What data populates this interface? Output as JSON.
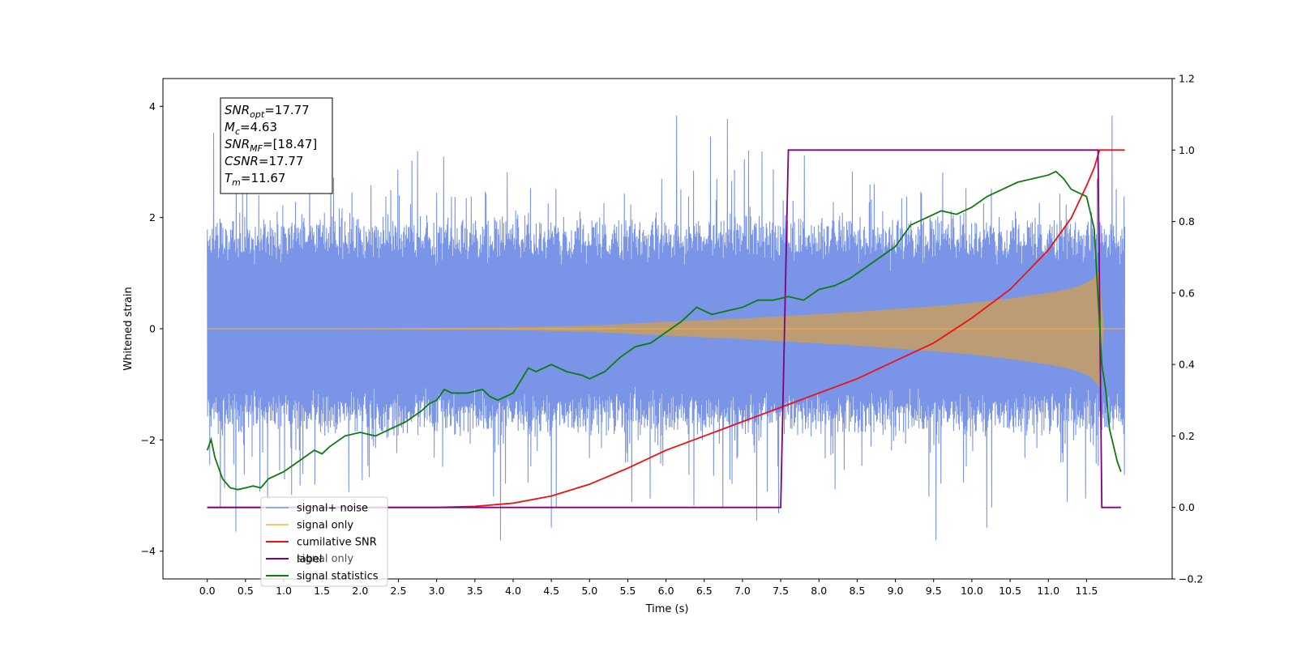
{
  "chart_data": {
    "type": "line",
    "xlabel": "Time (s)",
    "ylabel": "Whitened strain",
    "xlim": [
      -0.58,
      12.62
    ],
    "ylim_left": [
      -4.5,
      4.5
    ],
    "ylim_right": [
      -0.2,
      1.2
    ],
    "x_ticks": [
      0.0,
      0.5,
      1.0,
      1.5,
      2.0,
      2.5,
      3.0,
      3.5,
      4.0,
      4.5,
      5.0,
      5.5,
      6.0,
      6.5,
      7.0,
      7.5,
      8.0,
      8.5,
      9.0,
      9.5,
      10.0,
      10.5,
      11.0,
      11.5
    ],
    "y_ticks_left": [
      -4,
      -2,
      0,
      2,
      4
    ],
    "y_ticks_right": [
      -0.2,
      0.0,
      0.2,
      0.4,
      0.6,
      0.8,
      1.0,
      1.2
    ],
    "legend": {
      "placement": "lower-left",
      "entries": [
        "signal+ noise",
        "signal only",
        "cumilative SNR",
        "label",
        "signal statistics"
      ],
      "overlapped_entry": "signal only"
    },
    "annotation": {
      "lines": [
        {
          "base": "SNR",
          "sub": "opt",
          "value": "=17.77"
        },
        {
          "base": "M",
          "sub": "c",
          "value": "=4.63"
        },
        {
          "base": "SNR",
          "sub": "MF",
          "value": "=[18.47]"
        },
        {
          "base": "CSNR",
          "sub": "",
          "value": "=17.77"
        },
        {
          "base": "T",
          "sub": "m",
          "value": "=11.67"
        }
      ]
    },
    "colors": {
      "noise": "#7a95e8",
      "signal": "#f5b041",
      "signal_overlap": "#bc9c75",
      "csnr": "#ee1111",
      "label": "#800080",
      "stat": "#0f7a0f"
    },
    "series": [
      {
        "name": "signal+ noise",
        "axis": "left",
        "x_range": [
          0.0,
          12.0
        ],
        "core_band": [
          -1.6,
          1.7
        ],
        "peak_max": 4.1,
        "peak_min": -3.9
      },
      {
        "name": "signal only",
        "axis": "left",
        "envelope_x": [
          0.0,
          1.0,
          2.0,
          3.0,
          4.0,
          5.0,
          6.0,
          6.5,
          7.0,
          7.5,
          8.0,
          8.5,
          9.0,
          9.5,
          10.0,
          10.5,
          11.0,
          11.3,
          11.5,
          11.6,
          11.67,
          11.72,
          12.0
        ],
        "envelope_y": [
          0.0,
          0.0,
          0.005,
          0.01,
          0.02,
          0.05,
          0.12,
          0.15,
          0.18,
          0.22,
          0.26,
          0.3,
          0.35,
          0.4,
          0.46,
          0.54,
          0.64,
          0.72,
          0.82,
          0.92,
          1.05,
          0.0,
          0.0
        ]
      },
      {
        "name": "cumilative SNR",
        "axis": "right",
        "x": [
          0.0,
          2.0,
          3.0,
          3.5,
          4.0,
          4.5,
          5.0,
          5.5,
          6.0,
          6.5,
          7.0,
          7.5,
          8.0,
          8.5,
          9.0,
          9.5,
          10.0,
          10.5,
          11.0,
          11.3,
          11.5,
          11.6,
          11.67,
          12.0
        ],
        "y": [
          0.0,
          0.0,
          0.0,
          0.003,
          0.012,
          0.032,
          0.065,
          0.11,
          0.16,
          0.2,
          0.24,
          0.28,
          0.32,
          0.36,
          0.41,
          0.46,
          0.53,
          0.61,
          0.72,
          0.81,
          0.9,
          0.95,
          1.0,
          1.0
        ]
      },
      {
        "name": "label",
        "axis": "right",
        "x": [
          0.0,
          7.5,
          7.6,
          11.65,
          11.7,
          11.95
        ],
        "y": [
          0.0,
          0.0,
          1.0,
          1.0,
          0.0,
          0.0
        ]
      },
      {
        "name": "signal statistics",
        "axis": "right",
        "x": [
          0.0,
          0.05,
          0.1,
          0.2,
          0.3,
          0.4,
          0.5,
          0.6,
          0.7,
          0.8,
          1.0,
          1.2,
          1.4,
          1.5,
          1.6,
          1.8,
          2.0,
          2.2,
          2.4,
          2.6,
          2.8,
          2.9,
          3.0,
          3.1,
          3.2,
          3.4,
          3.6,
          3.7,
          3.8,
          4.0,
          4.2,
          4.3,
          4.5,
          4.7,
          4.9,
          5.0,
          5.2,
          5.4,
          5.6,
          5.8,
          6.0,
          6.2,
          6.4,
          6.6,
          6.8,
          7.0,
          7.2,
          7.4,
          7.6,
          7.8,
          8.0,
          8.2,
          8.4,
          8.6,
          8.8,
          9.0,
          9.2,
          9.4,
          9.6,
          9.8,
          10.0,
          10.2,
          10.4,
          10.6,
          10.8,
          11.0,
          11.1,
          11.2,
          11.3,
          11.4,
          11.5,
          11.6,
          11.7,
          11.75,
          11.8,
          11.9,
          11.95
        ],
        "y": [
          0.16,
          0.19,
          0.14,
          0.08,
          0.055,
          0.05,
          0.055,
          0.06,
          0.055,
          0.08,
          0.1,
          0.13,
          0.16,
          0.15,
          0.17,
          0.2,
          0.21,
          0.2,
          0.22,
          0.24,
          0.27,
          0.29,
          0.3,
          0.33,
          0.32,
          0.32,
          0.33,
          0.31,
          0.3,
          0.32,
          0.39,
          0.38,
          0.4,
          0.38,
          0.37,
          0.36,
          0.38,
          0.42,
          0.45,
          0.46,
          0.49,
          0.52,
          0.56,
          0.54,
          0.55,
          0.56,
          0.58,
          0.58,
          0.59,
          0.58,
          0.61,
          0.62,
          0.64,
          0.67,
          0.7,
          0.73,
          0.79,
          0.81,
          0.83,
          0.82,
          0.84,
          0.87,
          0.89,
          0.91,
          0.92,
          0.93,
          0.94,
          0.92,
          0.89,
          0.88,
          0.87,
          0.78,
          0.4,
          0.33,
          0.22,
          0.13,
          0.1
        ]
      }
    ]
  }
}
